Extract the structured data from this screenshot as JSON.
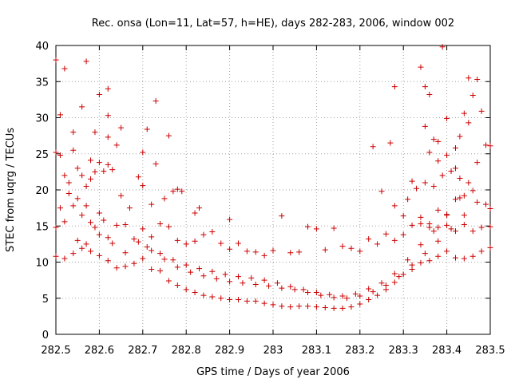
{
  "chart_data": {
    "type": "scatter",
    "title": "Rec. onsa (Lon=11, Lat=57, h=HE), days 282-283, 2006, window 002",
    "xlabel": "GPS time / Days of year 2006",
    "ylabel": "STEC from uqrg / TECUs",
    "xlim": [
      282.5,
      283.5
    ],
    "ylim": [
      0,
      40
    ],
    "x_ticks": [
      "282.5",
      "282.6",
      "282.7",
      "282.8",
      "282.9",
      "283",
      "283.1",
      "283.2",
      "283.3",
      "283.4",
      "283.5"
    ],
    "y_ticks": [
      "0",
      "5",
      "10",
      "15",
      "20",
      "25",
      "30",
      "35",
      "40"
    ],
    "x_tick_values": [
      282.5,
      282.6,
      282.7,
      282.8,
      282.9,
      283.0,
      283.1,
      283.2,
      283.3,
      283.4,
      283.5
    ],
    "y_tick_values": [
      0,
      5,
      10,
      15,
      20,
      25,
      30,
      35,
      40
    ],
    "grid": true,
    "legend": "none",
    "marker": "plus",
    "color": "#cc0000",
    "series": [
      {
        "points": [
          [
            282.5,
            38
          ],
          [
            282.51,
            30.4
          ],
          [
            282.52,
            36.8
          ],
          [
            282.54,
            28
          ],
          [
            282.56,
            31.5
          ],
          [
            282.57,
            37.8
          ],
          [
            282.59,
            28
          ],
          [
            282.6,
            33.2
          ],
          [
            282.62,
            34
          ],
          [
            282.62,
            30.3
          ],
          [
            282.64,
            26.2
          ],
          [
            282.65,
            28.6
          ],
          [
            282.7,
            25.2
          ],
          [
            282.71,
            28.4
          ],
          [
            282.73,
            32.3
          ],
          [
            282.76,
            27.5
          ],
          [
            282.62,
            27.3
          ],
          [
            282.58,
            24.1
          ],
          [
            282.62,
            23.5
          ],
          [
            282.5,
            25.2
          ],
          [
            282.51,
            24.8
          ],
          [
            282.52,
            22
          ],
          [
            282.53,
            21
          ],
          [
            282.54,
            25.5
          ],
          [
            282.55,
            23
          ],
          [
            282.56,
            22
          ],
          [
            282.57,
            20.5
          ],
          [
            282.58,
            21.5
          ],
          [
            282.59,
            22.5
          ],
          [
            282.6,
            23.8
          ],
          [
            282.61,
            22.6
          ],
          [
            282.63,
            22.8
          ],
          [
            282.65,
            19.2
          ],
          [
            282.67,
            17.5
          ],
          [
            282.69,
            21.8
          ],
          [
            282.7,
            20.6
          ],
          [
            282.72,
            18
          ],
          [
            282.73,
            23.6
          ],
          [
            282.75,
            18.8
          ],
          [
            282.77,
            19.8
          ],
          [
            282.78,
            20.1
          ],
          [
            282.79,
            19.8
          ],
          [
            282.82,
            16.8
          ],
          [
            282.83,
            17.5
          ],
          [
            282.9,
            15.9
          ],
          [
            282.5,
            14.8
          ],
          [
            282.51,
            17.5
          ],
          [
            282.52,
            15.6
          ],
          [
            282.53,
            19.5
          ],
          [
            282.54,
            17.8
          ],
          [
            282.55,
            18.8
          ],
          [
            282.56,
            16.5
          ],
          [
            282.57,
            17.8
          ],
          [
            282.58,
            15.5
          ],
          [
            282.59,
            14.8
          ],
          [
            282.6,
            16.8
          ],
          [
            282.61,
            15.8
          ],
          [
            282.62,
            13.4
          ],
          [
            282.64,
            15.1
          ],
          [
            282.66,
            15.2
          ],
          [
            282.68,
            13.2
          ],
          [
            282.7,
            14.6
          ],
          [
            282.72,
            13.5
          ],
          [
            282.74,
            15.3
          ],
          [
            282.76,
            14.9
          ],
          [
            282.78,
            13
          ],
          [
            282.8,
            12.5
          ],
          [
            282.82,
            12.9
          ],
          [
            282.84,
            13.8
          ],
          [
            282.86,
            14.2
          ],
          [
            282.88,
            12.6
          ],
          [
            282.9,
            11.8
          ],
          [
            282.92,
            12.6
          ],
          [
            282.94,
            11.5
          ],
          [
            282.96,
            11.4
          ],
          [
            282.98,
            10.9
          ],
          [
            283,
            11.6
          ],
          [
            283.02,
            16.4
          ],
          [
            283.04,
            11.3
          ],
          [
            283.06,
            11.4
          ],
          [
            283.08,
            14.9
          ],
          [
            283.1,
            14.6
          ],
          [
            283.12,
            11.7
          ],
          [
            283.14,
            14.7
          ],
          [
            283.16,
            12.2
          ],
          [
            283.18,
            11.9
          ],
          [
            283.2,
            11.5
          ],
          [
            283.22,
            13.2
          ],
          [
            283.24,
            12.5
          ],
          [
            283.26,
            13.9
          ],
          [
            283.28,
            13
          ],
          [
            283.3,
            13.8
          ],
          [
            283.32,
            15.1
          ],
          [
            283.34,
            15.3
          ],
          [
            283.36,
            14.8
          ],
          [
            283.38,
            14.8
          ],
          [
            283.4,
            15.1
          ],
          [
            283.42,
            14.3
          ],
          [
            283.44,
            15.2
          ],
          [
            283.46,
            14.3
          ],
          [
            283.48,
            14.8
          ],
          [
            283.5,
            14.9
          ],
          [
            282.5,
            10.8
          ],
          [
            282.52,
            10.5
          ],
          [
            282.54,
            11.2
          ],
          [
            282.56,
            11.9
          ],
          [
            282.58,
            11.5
          ],
          [
            282.6,
            10.9
          ],
          [
            282.62,
            10.2
          ],
          [
            282.64,
            9.2
          ],
          [
            282.66,
            9.4
          ],
          [
            282.68,
            9.8
          ],
          [
            282.7,
            10.5
          ],
          [
            282.72,
            9
          ],
          [
            282.74,
            8.8
          ],
          [
            282.76,
            7.4
          ],
          [
            282.78,
            6.8
          ],
          [
            282.8,
            6.2
          ],
          [
            282.82,
            5.8
          ],
          [
            282.84,
            5.4
          ],
          [
            282.86,
            5.2
          ],
          [
            282.88,
            5
          ],
          [
            282.9,
            4.8
          ],
          [
            282.92,
            4.8
          ],
          [
            282.94,
            4.6
          ],
          [
            282.96,
            4.6
          ],
          [
            282.98,
            4.3
          ],
          [
            283,
            4.1
          ],
          [
            283.02,
            3.9
          ],
          [
            283.04,
            3.8
          ],
          [
            283.06,
            3.9
          ],
          [
            283.08,
            3.9
          ],
          [
            283.1,
            3.8
          ],
          [
            283.12,
            3.7
          ],
          [
            283.14,
            3.6
          ],
          [
            283.16,
            3.6
          ],
          [
            283.18,
            3.8
          ],
          [
            283.2,
            4.2
          ],
          [
            283.22,
            4.8
          ],
          [
            283.24,
            5.4
          ],
          [
            283.26,
            6.2
          ],
          [
            283.28,
            7.2
          ],
          [
            283.3,
            8.3
          ],
          [
            283.32,
            9
          ],
          [
            283.34,
            9.9
          ],
          [
            283.36,
            10.2
          ],
          [
            283.38,
            10.8
          ],
          [
            283.4,
            11.5
          ],
          [
            283.42,
            10.6
          ],
          [
            283.44,
            10.5
          ],
          [
            283.46,
            10.8
          ],
          [
            283.48,
            11.5
          ],
          [
            283.5,
            12
          ],
          [
            282.55,
            13
          ],
          [
            282.57,
            12.5
          ],
          [
            282.6,
            13.8
          ],
          [
            282.63,
            12.6
          ],
          [
            282.66,
            11.3
          ],
          [
            282.69,
            12.8
          ],
          [
            282.72,
            11.6
          ],
          [
            282.75,
            10.4
          ],
          [
            282.78,
            9.3
          ],
          [
            282.81,
            8.6
          ],
          [
            282.84,
            8.1
          ],
          [
            282.87,
            7.7
          ],
          [
            282.9,
            7.3
          ],
          [
            282.93,
            7.1
          ],
          [
            282.96,
            6.9
          ],
          [
            282.99,
            6.7
          ],
          [
            283.02,
            6.4
          ],
          [
            283.05,
            6.2
          ],
          [
            283.08,
            5.8
          ],
          [
            283.11,
            5.4
          ],
          [
            283.14,
            5.1
          ],
          [
            283.17,
            5
          ],
          [
            283.2,
            5.3
          ],
          [
            283.23,
            5.9
          ],
          [
            283.26,
            6.8
          ],
          [
            283.29,
            8
          ],
          [
            283.32,
            9.6
          ],
          [
            283.35,
            11.2
          ],
          [
            283.38,
            12.9
          ],
          [
            283.41,
            14.6
          ],
          [
            283.44,
            16.5
          ],
          [
            283.47,
            18.3
          ],
          [
            282.71,
            12.1
          ],
          [
            282.74,
            11.2
          ],
          [
            282.77,
            10.3
          ],
          [
            282.8,
            9.6
          ],
          [
            282.83,
            9.1
          ],
          [
            282.86,
            8.7
          ],
          [
            282.89,
            8.3
          ],
          [
            282.92,
            8
          ],
          [
            282.95,
            7.8
          ],
          [
            282.98,
            7.5
          ],
          [
            283.01,
            7.1
          ],
          [
            283.04,
            6.6
          ],
          [
            283.07,
            6.2
          ],
          [
            283.1,
            5.8
          ],
          [
            283.13,
            5.5
          ],
          [
            283.16,
            5.3
          ],
          [
            283.19,
            5.6
          ],
          [
            283.22,
            6.3
          ],
          [
            283.25,
            7.1
          ],
          [
            283.28,
            8.4
          ],
          [
            283.31,
            10.3
          ],
          [
            283.34,
            12.4
          ],
          [
            283.37,
            14.3
          ],
          [
            283.4,
            16.6
          ],
          [
            283.43,
            18.9
          ],
          [
            283.35,
            21
          ],
          [
            283.37,
            20.5
          ],
          [
            283.38,
            24
          ],
          [
            283.39,
            22
          ],
          [
            283.4,
            24.8
          ],
          [
            283.41,
            22.6
          ],
          [
            283.42,
            25.8
          ],
          [
            283.43,
            27.4
          ],
          [
            283.44,
            30.6
          ],
          [
            283.45,
            29.3
          ],
          [
            283.46,
            33.1
          ],
          [
            283.47,
            35.3
          ],
          [
            283.48,
            30.9
          ],
          [
            283.49,
            26.2
          ],
          [
            283.5,
            26.1
          ],
          [
            283.47,
            23.8
          ],
          [
            283.45,
            21
          ],
          [
            283.46,
            19.9
          ],
          [
            283.49,
            18
          ],
          [
            283.5,
            17.4
          ],
          [
            283.44,
            19.2
          ],
          [
            283.42,
            18.7
          ],
          [
            283.4,
            16.5
          ],
          [
            283.38,
            17.2
          ],
          [
            283.36,
            15.3
          ],
          [
            283.34,
            16.2
          ],
          [
            283.33,
            20.2
          ],
          [
            283.32,
            21.2
          ],
          [
            283.31,
            18.7
          ],
          [
            283.3,
            16.4
          ],
          [
            283.28,
            17.8
          ],
          [
            283.27,
            26.5
          ],
          [
            283.28,
            34.3
          ],
          [
            283.23,
            26
          ],
          [
            283.25,
            19.8
          ],
          [
            283.34,
            37
          ],
          [
            283.36,
            33.2
          ],
          [
            283.35,
            28.8
          ],
          [
            283.39,
            39.8
          ],
          [
            283.4,
            29.9
          ],
          [
            283.42,
            23
          ],
          [
            283.43,
            21.6
          ],
          [
            283.45,
            35.5
          ],
          [
            283.35,
            34.3
          ],
          [
            283.37,
            27
          ],
          [
            283.36,
            25.2
          ],
          [
            283.38,
            26.7
          ]
        ]
      }
    ]
  }
}
